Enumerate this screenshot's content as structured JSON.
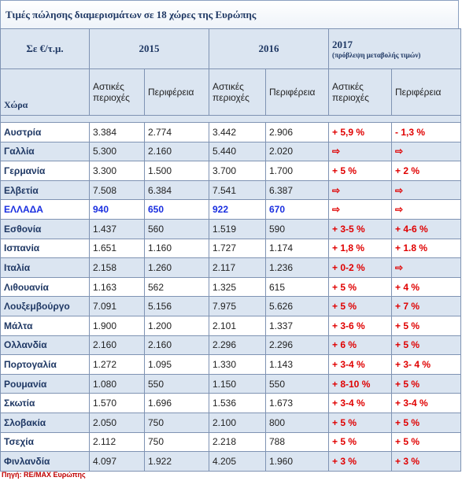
{
  "title": "Τιμές πώλησης διαμερισμάτων σε 18 χώρες της Ευρώπης",
  "header": {
    "unit": "Σε €/τ.μ.",
    "years": [
      "2015",
      "2016",
      "2017"
    ],
    "note": "(πρόβλεψη μεταβολής τιμών)",
    "country": "Χώρα",
    "subheaders": [
      "Αστικές περιοχές",
      "Περιφέρεια",
      "Αστικές περιοχές",
      "Περιφέρεια",
      "Αστικές περιοχές",
      "Περιφέρεια"
    ]
  },
  "table": {
    "rows": [
      [
        "Αυστρία",
        "3.384",
        "2.774",
        "3.442",
        "2.906",
        "+ 5,9 %",
        "- 1,3 %"
      ],
      [
        "Γαλλία",
        "5.300",
        "2.160",
        "5.440",
        "2.020",
        "⇨",
        "⇨"
      ],
      [
        "Γερμανία",
        "3.300",
        "1.500",
        "3.700",
        "1.700",
        "+ 5 %",
        "+ 2 %"
      ],
      [
        "Ελβετία",
        "7.508",
        "6.384",
        "7.541",
        "6.387",
        "⇨",
        "⇨"
      ],
      [
        "ΕΛΛΑΔΑ",
        "940",
        "650",
        "922",
        "670",
        "⇨",
        "⇨"
      ],
      [
        "Εσθονία",
        "1.437",
        "560",
        "1.519",
        "590",
        "+ 3-5 %",
        "+ 4-6 %"
      ],
      [
        "Ισπανία",
        "1.651",
        "1.160",
        "1.727",
        "1.174",
        "+ 1,8 %",
        "+ 1.8 %"
      ],
      [
        "Ιταλία",
        "2.158",
        "1.260",
        "2.117",
        "1.236",
        "+ 0-2 %",
        "⇨"
      ],
      [
        "Λιθουανία",
        "1.163",
        "562",
        "1.325",
        "615",
        "+ 5 %",
        "+ 4 %"
      ],
      [
        "Λουξεμβούργο",
        "7.091",
        "5.156",
        "7.975",
        "5.626",
        "+ 5 %",
        "+ 7 %"
      ],
      [
        "Μάλτα",
        "1.900",
        "1.200",
        "2.101",
        "1.337",
        "+ 3-6 %",
        "+ 5 %"
      ],
      [
        "Ολλανδία",
        "2.160",
        "2.160",
        "2.296",
        "2.296",
        "+ 6 %",
        "+ 5 %"
      ],
      [
        "Πορτογαλία",
        "1.272",
        "1.095",
        "1.330",
        "1.143",
        "+ 3-4 %",
        "+ 3- 4 %"
      ],
      [
        "Ρουμανία",
        "1.080",
        "550",
        "1.150",
        "550",
        "+ 8-10 %",
        "+ 5 %"
      ],
      [
        "Σκωτία",
        "1.570",
        "1.696",
        "1.536",
        "1.673",
        "+ 3-4 %",
        "+ 3-4 %"
      ],
      [
        "Σλοβακία",
        "2.050",
        "750",
        "2.100",
        "800",
        "+ 5 %",
        "+ 5 %"
      ],
      [
        "Τσεχία",
        "2.112",
        "750",
        "2.218",
        "788",
        "+ 5 %",
        "+ 5 %"
      ],
      [
        "Φινλανδία",
        "4.097",
        "1.922",
        "4.205",
        "1.960",
        "+ 3 %",
        "+ 3 %"
      ]
    ]
  },
  "source": "Πηγή: RE/MAX Ευρώπης"
}
